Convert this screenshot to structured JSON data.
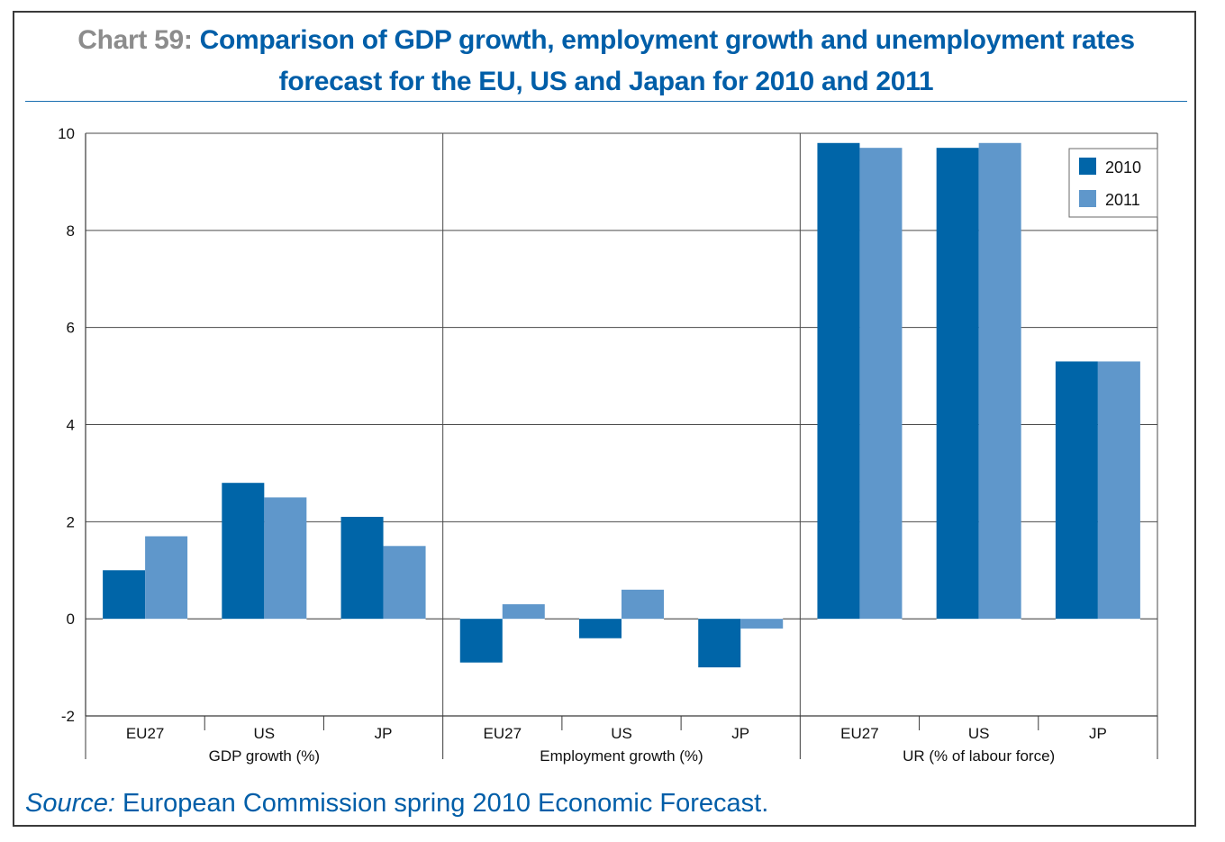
{
  "title": {
    "label": "Chart 59:",
    "line1": "Comparison of GDP growth, employment growth and unemployment rates",
    "line2": "forecast for the EU, US and Japan for 2010 and 2011"
  },
  "source": {
    "label": "Source:",
    "text": "European Commission spring 2010 Economic Forecast."
  },
  "colors": {
    "series_2010": "#0065a8",
    "series_2011": "#5f97cb",
    "title": "#005ea8",
    "title_label": "#8c8c8c"
  },
  "chart_data": {
    "type": "bar",
    "title": "Comparison of GDP growth, employment growth and unemployment rates forecast for the EU, US and Japan for 2010 and 2011",
    "ylim": [
      -2,
      10
    ],
    "yticks": [
      "-2",
      "0",
      "2",
      "4",
      "6",
      "8",
      "10"
    ],
    "grid": true,
    "legend_position": "top-right",
    "groups": [
      {
        "label": "GDP growth (%)",
        "categories": [
          "EU27",
          "US",
          "JP"
        ]
      },
      {
        "label": "Employment growth (%)",
        "categories": [
          "EU27",
          "US",
          "JP"
        ]
      },
      {
        "label": "UR (% of labour force)",
        "categories": [
          "EU27",
          "US",
          "JP"
        ]
      }
    ],
    "series": [
      {
        "name": "2010",
        "values": [
          1.0,
          2.8,
          2.1,
          -0.9,
          -0.4,
          -1.0,
          9.8,
          9.7,
          5.3
        ]
      },
      {
        "name": "2011",
        "values": [
          1.7,
          2.5,
          1.5,
          0.3,
          0.6,
          -0.2,
          9.7,
          9.8,
          5.3
        ]
      }
    ]
  }
}
